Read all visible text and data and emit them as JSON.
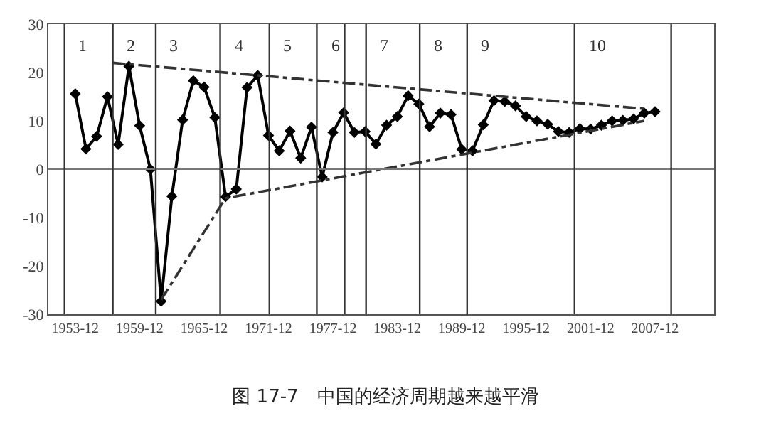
{
  "chart_data": {
    "type": "line",
    "title": "图 17-7　中国的经济周期越来越平滑",
    "x": [
      "1953-12",
      "1954-12",
      "1955-12",
      "1956-12",
      "1957-12",
      "1958-12",
      "1959-12",
      "1960-12",
      "1961-12",
      "1962-12",
      "1963-12",
      "1964-12",
      "1965-12",
      "1966-12",
      "1967-12",
      "1968-12",
      "1969-12",
      "1970-12",
      "1971-12",
      "1972-12",
      "1973-12",
      "1974-12",
      "1975-12",
      "1976-12",
      "1977-12",
      "1978-12",
      "1979-12",
      "1980-12",
      "1981-12",
      "1982-12",
      "1983-12",
      "1984-12",
      "1985-12",
      "1986-12",
      "1987-12",
      "1988-12",
      "1989-12",
      "1990-12",
      "1991-12",
      "1992-12",
      "1993-12",
      "1994-12",
      "1995-12",
      "1996-12",
      "1997-12",
      "1998-12",
      "1999-12",
      "2000-12",
      "2001-12",
      "2002-12",
      "2003-12",
      "2004-12",
      "2005-12",
      "2006-12",
      "2007-12"
    ],
    "series": [
      {
        "color": "#000000",
        "marker": "diamond",
        "line_style": "solid",
        "values": [
          15.6,
          4.2,
          6.8,
          15.0,
          5.1,
          21.3,
          9.0,
          0.0,
          -27.3,
          -5.6,
          10.2,
          18.3,
          17.0,
          10.7,
          -5.7,
          -4.1,
          16.9,
          19.4,
          7.0,
          3.8,
          7.9,
          2.3,
          8.7,
          -1.6,
          7.6,
          11.7,
          7.6,
          7.8,
          5.2,
          9.1,
          10.9,
          15.2,
          13.5,
          8.8,
          11.6,
          11.3,
          4.1,
          3.8,
          9.2,
          14.2,
          14.0,
          13.1,
          10.9,
          10.0,
          9.3,
          7.8,
          7.6,
          8.4,
          8.3,
          9.1,
          10.0,
          10.1,
          10.4,
          11.6,
          11.9
        ]
      },
      {
        "type": "line",
        "color": "#333333",
        "marker": "none",
        "line_style": "dashed",
        "x": [
          "1957-06",
          "2006-12"
        ],
        "values": [
          22,
          12.5
        ]
      },
      {
        "type": "line",
        "color": "#333333",
        "marker": "none",
        "line_style": "dashed",
        "x": [
          "1961-12",
          "1967-12",
          "2006-12"
        ],
        "values": [
          -27,
          -6,
          10
        ]
      }
    ],
    "xlim": [
      "1951-06",
      "2013-06"
    ],
    "xticks": [
      {
        "value": "1953-12",
        "label": "1953-12"
      },
      {
        "value": "1959-12",
        "label": "1959-12"
      },
      {
        "value": "1965-12",
        "label": "1965-12"
      },
      {
        "value": "1971-12",
        "label": "1971-12"
      },
      {
        "value": "1977-12",
        "label": "1977-12"
      },
      {
        "value": "1983-12",
        "label": "1983-12"
      },
      {
        "value": "1989-12",
        "label": "1989-12"
      },
      {
        "value": "1995-12",
        "label": "1995-12"
      },
      {
        "value": "2001-12",
        "label": "2001-12"
      },
      {
        "value": "2007-12",
        "label": "2007-12"
      }
    ],
    "ylim": [
      -30,
      30
    ],
    "yticks": [
      -30,
      -20,
      -10,
      0,
      10,
      20,
      30
    ],
    "ref_lines": [
      {
        "axis": "y",
        "value": 0
      },
      {
        "axis": "x",
        "value": "1952-12",
        "label": "1"
      },
      {
        "axis": "x",
        "value": "1957-06",
        "label": "2"
      },
      {
        "axis": "x",
        "value": "1961-06",
        "label": "3"
      },
      {
        "axis": "x",
        "value": "1967-06",
        "label": "4"
      },
      {
        "axis": "x",
        "value": "1972-01",
        "label": "5"
      },
      {
        "axis": "x",
        "value": "1976-06",
        "label": "6"
      },
      {
        "axis": "x",
        "value": "1979-01"
      },
      {
        "axis": "x",
        "value": "1981-01",
        "label": "7"
      },
      {
        "axis": "x",
        "value": "1986-01",
        "label": "8"
      },
      {
        "axis": "x",
        "value": "1990-06",
        "label": "9"
      },
      {
        "axis": "x",
        "value": "2000-06",
        "label": "10"
      },
      {
        "axis": "x",
        "value": "2009-06"
      }
    ],
    "legend": false
  }
}
